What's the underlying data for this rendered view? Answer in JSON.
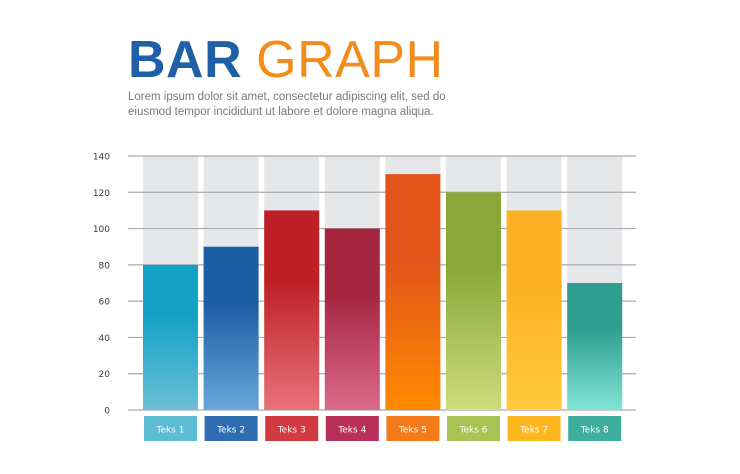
{
  "heading": {
    "title_part1": "BAR",
    "title_part2": "GRAPH",
    "subtitle": "Lorem ipsum dolor sit amet, consectetur adipiscing elit, sed do eiusmod tempor incididunt ut labore et dolore magna aliqua."
  },
  "chart_data": {
    "type": "bar",
    "categories": [
      "Teks 1",
      "Teks 2",
      "Teks 3",
      "Teks 4",
      "Teks 5",
      "Teks 6",
      "Teks 7",
      "Teks 8"
    ],
    "values": [
      80,
      90,
      110,
      100,
      130,
      120,
      110,
      70
    ],
    "ylim": [
      0,
      140
    ],
    "yticks": [
      0,
      20,
      40,
      60,
      80,
      100,
      120,
      140
    ],
    "grid": true,
    "colors": [
      [
        "#13a2c6",
        "#6bbfd6"
      ],
      [
        "#1b5ea3",
        "#6aa6dc"
      ],
      [
        "#bf1f26",
        "#e8727a"
      ],
      [
        "#a5243f",
        "#dc6a8a"
      ],
      [
        "#e2541a",
        "#ff8a00"
      ],
      [
        "#8aa83a",
        "#cedc7c"
      ],
      [
        "#fdb022",
        "#ffca3a"
      ],
      [
        "#2e9e8f",
        "#80e4d4"
      ]
    ],
    "label_colors": [
      "#5cbcd4",
      "#2e6eb0",
      "#d23a42",
      "#b8305a",
      "#f57a1a",
      "#a9c254",
      "#fdb71e",
      "#3fae9c"
    ]
  }
}
